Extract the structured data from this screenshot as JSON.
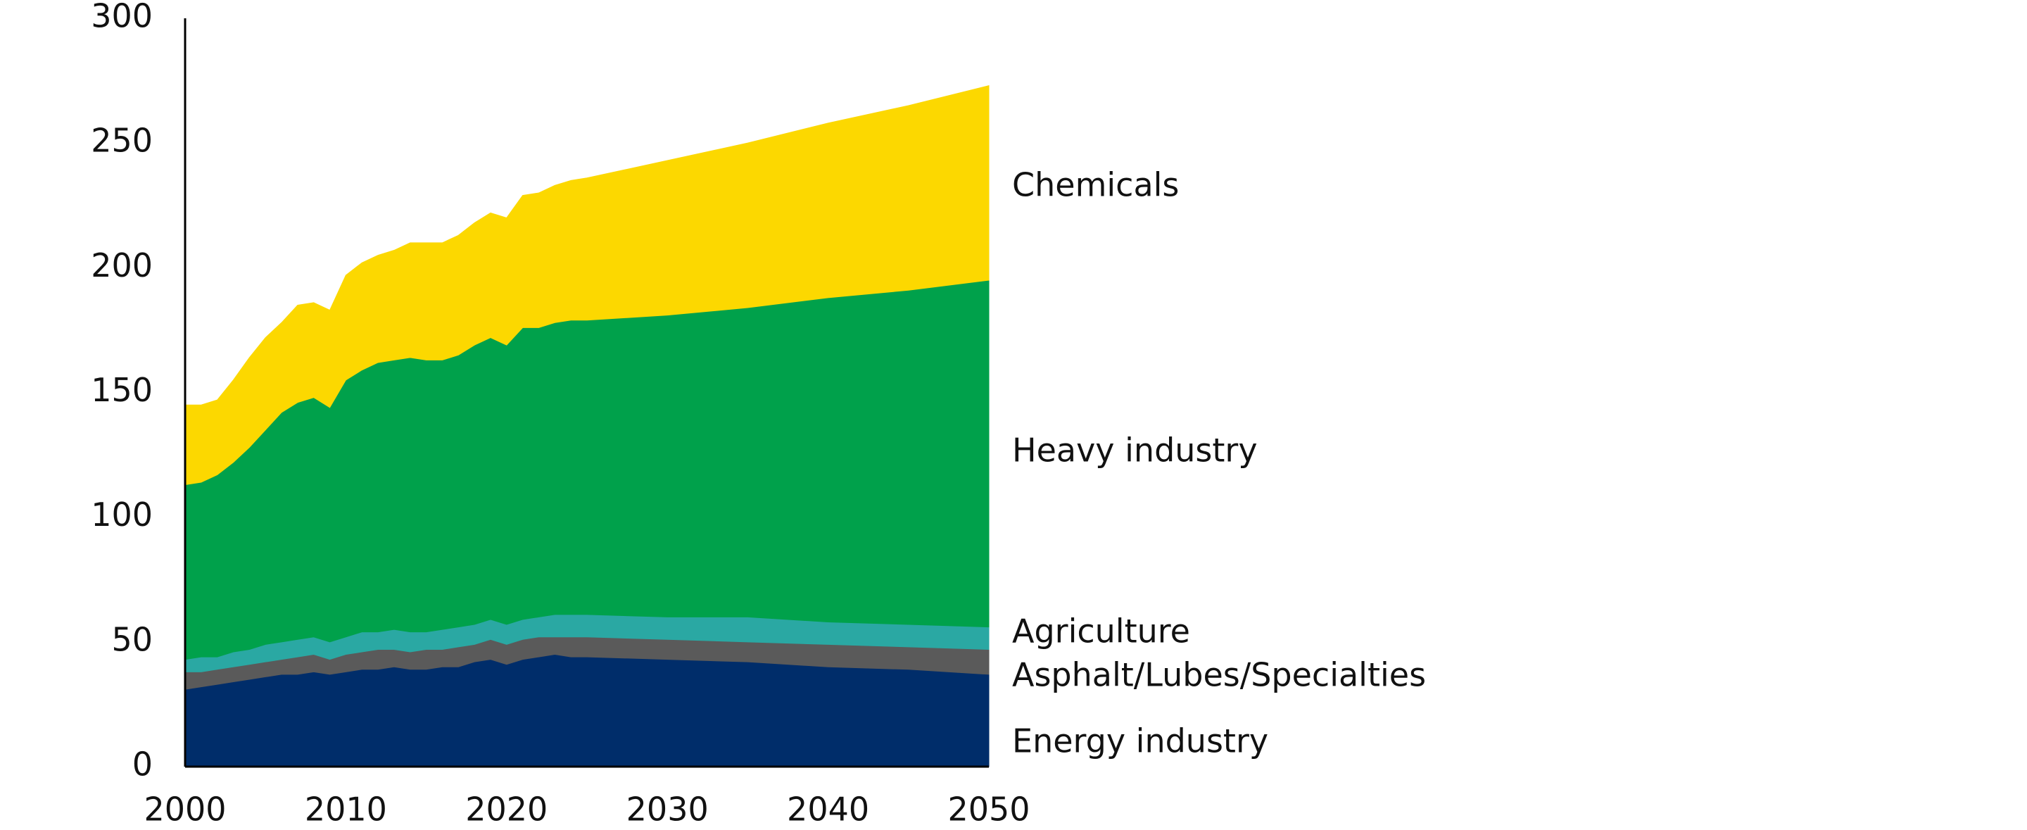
{
  "chart_data": {
    "type": "stacked_area",
    "x": [
      2000,
      2001,
      2002,
      2003,
      2004,
      2005,
      2006,
      2007,
      2008,
      2009,
      2010,
      2011,
      2012,
      2013,
      2014,
      2015,
      2016,
      2017,
      2018,
      2019,
      2020,
      2021,
      2022,
      2023,
      2024,
      2025,
      2030,
      2035,
      2040,
      2045,
      2050
    ],
    "series": [
      {
        "name": "Energy industry",
        "color": "#002d6a",
        "values": [
          31,
          32,
          33,
          34,
          35,
          36,
          37,
          37,
          38,
          37,
          38,
          39,
          39,
          40,
          39,
          39,
          40,
          40,
          42,
          43,
          41,
          43,
          44,
          45,
          44,
          44,
          43,
          42,
          40,
          39,
          37
        ]
      },
      {
        "name": "Asphalt/Lubes/Specialties",
        "color": "#5a5a5a",
        "values": [
          7,
          6,
          6,
          6,
          6,
          6,
          6,
          7,
          7,
          6,
          7,
          7,
          8,
          7,
          7,
          8,
          7,
          8,
          7,
          8,
          8,
          8,
          8,
          7,
          8,
          8,
          8,
          8,
          9,
          9,
          10
        ]
      },
      {
        "name": "Agriculture",
        "color": "#2aa8a3",
        "values": [
          5,
          6,
          5,
          6,
          6,
          7,
          7,
          7,
          7,
          7,
          7,
          8,
          7,
          8,
          8,
          7,
          8,
          8,
          8,
          8,
          8,
          8,
          8,
          9,
          9,
          9,
          9,
          10,
          9,
          9,
          9
        ]
      },
      {
        "name": "Heavy industry",
        "color": "#00a14b",
        "values": [
          70,
          70,
          73,
          76,
          81,
          86,
          92,
          95,
          96,
          94,
          103,
          105,
          108,
          108,
          110,
          109,
          108,
          109,
          112,
          113,
          112,
          117,
          116,
          117,
          118,
          118,
          121,
          124,
          130,
          134,
          139
        ]
      },
      {
        "name": "Chemicals",
        "color": "#fcd800",
        "values": [
          32,
          31,
          30,
          33,
          36,
          37,
          36,
          39,
          38,
          39,
          42,
          43,
          43,
          44,
          46,
          47,
          47,
          48,
          49,
          50,
          51,
          53,
          54,
          55,
          56,
          57,
          62,
          66,
          70,
          74,
          78
        ]
      }
    ],
    "xlim": [
      2000,
      2050
    ],
    "xticks": [
      2000,
      2010,
      2020,
      2030,
      2040,
      2050
    ],
    "ylim": [
      0,
      300
    ],
    "yticks": [
      0,
      50,
      100,
      150,
      200,
      250,
      300
    ]
  }
}
